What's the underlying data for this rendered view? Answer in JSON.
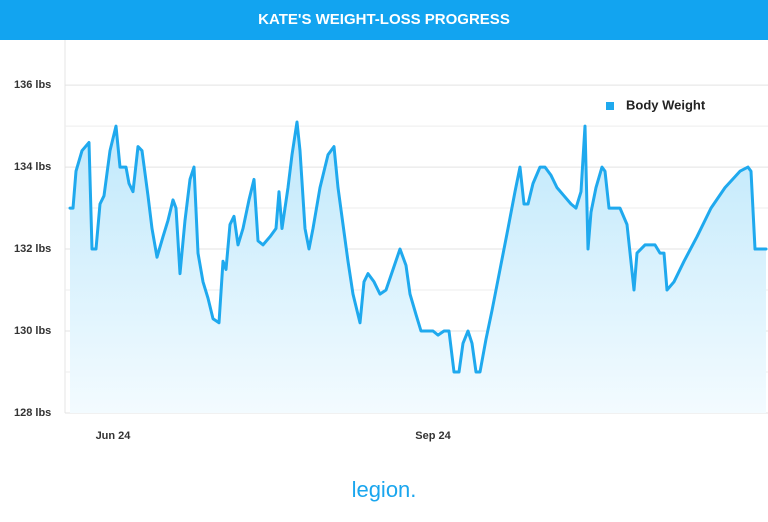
{
  "chart_data": {
    "type": "line",
    "title": "KATE'S WEIGHT-LOSS PROGRESS",
    "x": [
      5,
      8,
      11,
      17,
      24,
      27,
      31,
      35,
      39,
      45,
      51,
      55,
      61,
      64,
      68,
      73,
      77,
      83,
      87,
      92,
      98,
      103,
      108,
      111,
      115,
      120,
      125,
      129,
      133,
      138,
      143,
      148,
      154,
      158,
      161,
      165,
      169,
      173,
      178,
      184,
      189,
      193,
      198,
      205,
      211,
      214,
      217,
      223,
      227,
      232,
      235,
      240,
      244,
      248,
      255,
      263,
      269,
      273,
      278,
      283,
      288,
      295,
      299,
      303,
      309,
      315,
      321,
      328,
      335,
      341,
      345,
      351,
      356,
      363,
      368,
      373,
      379,
      384,
      389,
      394,
      398,
      403,
      407,
      411,
      415,
      421,
      427,
      435,
      443,
      450,
      455,
      459,
      463,
      468,
      475,
      480,
      486,
      492,
      499,
      506,
      511,
      516,
      520,
      523,
      526,
      531,
      537,
      540,
      544,
      552,
      555,
      562,
      569,
      572,
      580,
      590,
      595,
      599,
      602,
      609,
      619,
      632,
      646,
      660,
      675,
      683,
      686,
      690,
      697,
      701
    ],
    "series": [
      {
        "name": "Body Weight",
        "color": "#1fa9ee",
        "values": [
          133.0,
          133.0,
          133.9,
          134.4,
          134.6,
          132.0,
          132.0,
          133.1,
          133.3,
          134.4,
          135.0,
          134.0,
          134.0,
          133.6,
          133.4,
          134.5,
          134.4,
          133.3,
          132.5,
          131.8,
          132.3,
          132.7,
          133.2,
          133.0,
          131.4,
          132.7,
          133.7,
          134.0,
          131.9,
          131.2,
          130.8,
          130.3,
          130.2,
          131.7,
          131.5,
          132.6,
          132.8,
          132.1,
          132.5,
          133.2,
          133.7,
          132.2,
          132.1,
          132.3,
          132.5,
          133.4,
          132.5,
          133.5,
          134.3,
          135.1,
          134.4,
          132.5,
          132.0,
          132.5,
          133.5,
          134.3,
          134.5,
          133.5,
          132.6,
          131.7,
          130.9,
          130.2,
          131.2,
          131.4,
          131.2,
          130.9,
          131.0,
          131.5,
          132.0,
          131.6,
          130.9,
          130.4,
          130.0,
          130.0,
          130.0,
          129.9,
          130.0,
          130.0,
          129.0,
          129.0,
          129.7,
          130.0,
          129.7,
          129.0,
          129.0,
          129.8,
          130.5,
          131.5,
          132.5,
          133.4,
          134.0,
          133.1,
          133.1,
          133.6,
          134.0,
          134.0,
          133.8,
          133.5,
          133.3,
          133.1,
          133.0,
          133.4,
          135.0,
          132.0,
          132.9,
          133.5,
          134.0,
          133.9,
          133.0,
          133.0,
          133.0,
          132.6,
          131.0,
          131.9,
          132.1,
          132.1,
          131.9,
          131.9,
          131.0,
          131.2,
          131.7,
          132.3,
          133.0,
          133.5,
          133.9,
          134.0,
          133.9,
          132.0,
          132.0,
          132.0
        ]
      }
    ],
    "xlim": [
      0,
      703
    ],
    "xticks": [
      {
        "value": 48,
        "label": "Jun 24"
      },
      {
        "value": 368,
        "label": "Sep 24"
      }
    ],
    "ylim": [
      128,
      137.1
    ],
    "yticks": [
      {
        "value": 128,
        "label": "128 lbs"
      },
      {
        "value": 130,
        "label": "130 lbs"
      },
      {
        "value": 132,
        "label": "132 lbs"
      },
      {
        "value": 134,
        "label": "134 lbs"
      },
      {
        "value": 136,
        "label": "136 lbs"
      }
    ],
    "minor_yticks": [
      129,
      131,
      133,
      135
    ],
    "grid": true,
    "legend": "upper right"
  },
  "footer_logo": "legion."
}
